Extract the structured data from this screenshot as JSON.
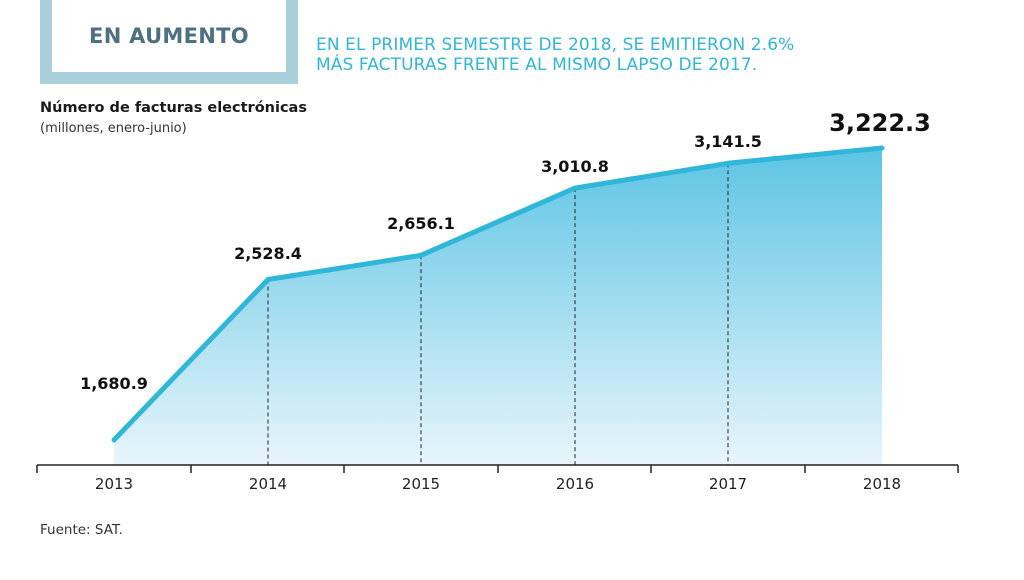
{
  "badge": {
    "label": "EN AUMENTO"
  },
  "headline": {
    "line1": "EN EL PRIMER SEMESTRE DE 2018, SE EMITIERON 2.6%",
    "line2": "MÁS FACTURAS FRENTE AL MISMO LAPSO DE 2017."
  },
  "source": "Fuente: SAT.",
  "colors": {
    "accent": "#2fb6d8",
    "badge": "#a8cfda",
    "badge_text": "#4f6f82"
  },
  "chart_data": {
    "type": "area",
    "title": "Número de facturas electrónicas",
    "subtitle": "(millones, enero-junio)",
    "categories": [
      "2013",
      "2014",
      "2015",
      "2016",
      "2017",
      "2018"
    ],
    "values": [
      1680.9,
      2528.4,
      2656.1,
      3010.8,
      3141.5,
      3222.3
    ],
    "value_labels": [
      "1,680.9",
      "2,528.4",
      "2,656.1",
      "3,010.8",
      "3,141.5",
      "3,222.3"
    ],
    "highlight_index": 5,
    "grid": false
  }
}
